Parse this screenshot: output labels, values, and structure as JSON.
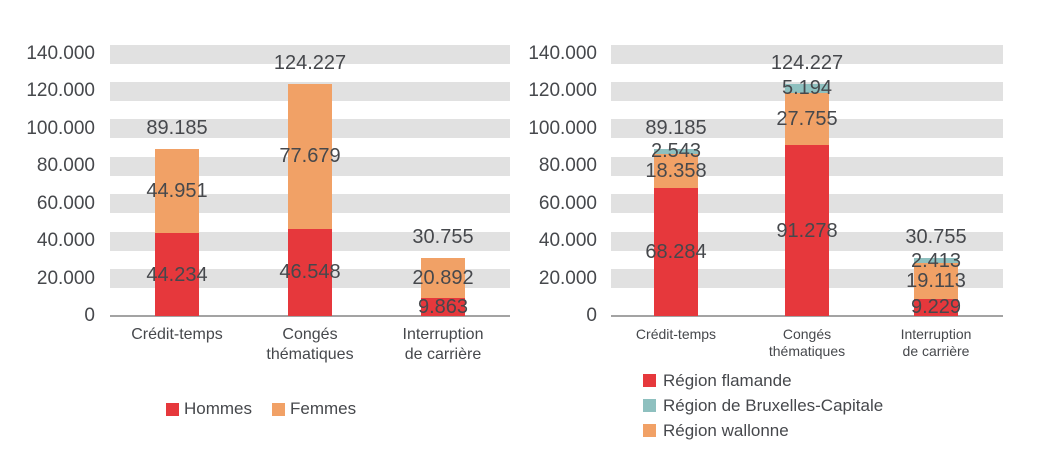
{
  "colors": {
    "red": "#e6383c",
    "orange": "#f1a166",
    "teal": "#8ec0bf",
    "stripe_gray": "#e1e1e1",
    "axis_gray": "#a3a3a3",
    "text": "#46484c"
  },
  "chart_data": [
    {
      "id": "gender-chart",
      "type": "bar",
      "stacked": true,
      "title": "",
      "xlabel": "",
      "ylabel": "",
      "ylim": [
        0,
        140000
      ],
      "grid": "thick-gray-bands",
      "categories": [
        "Crédit-temps",
        "Congés thématiques",
        "Interruption de carrière"
      ],
      "category_lines": [
        [
          "Crédit-temps"
        ],
        [
          "Congés",
          "thématiques"
        ],
        [
          "Interruption",
          "de carrière"
        ]
      ],
      "y_axis": {
        "min": 0,
        "max": 140000,
        "step": 20000,
        "tick_labels": [
          "0",
          "20.000",
          "40.000",
          "60.000",
          "80.000",
          "100.000",
          "120.000",
          "140.000"
        ]
      },
      "series": [
        {
          "name": "Hommes",
          "color": "#e6383c",
          "values": [
            44234,
            46548,
            9863
          ],
          "labels": [
            "44.234",
            "46.548",
            "9.863"
          ]
        },
        {
          "name": "Femmes",
          "color": "#f1a166",
          "values": [
            44951,
            77679,
            20892
          ],
          "labels": [
            "44.951",
            "77.679",
            "20.892"
          ]
        }
      ],
      "totals": {
        "values": [
          89185,
          124227,
          30755
        ],
        "labels": [
          "89.185",
          "124.227",
          "30.755"
        ]
      },
      "legend": {
        "position": "bottom-horizontal",
        "items": [
          {
            "label": "Hommes",
            "color": "#e6383c"
          },
          {
            "label": "Femmes",
            "color": "#f1a166"
          }
        ]
      }
    },
    {
      "id": "region-chart",
      "type": "bar",
      "stacked": true,
      "title": "",
      "xlabel": "",
      "ylabel": "",
      "ylim": [
        0,
        140000
      ],
      "grid": "thick-gray-bands",
      "categories": [
        "Crédit-temps",
        "Congés thématiques",
        "Interruption de carrière"
      ],
      "category_lines": [
        [
          "Crédit-temps"
        ],
        [
          "Congés",
          "thématiques"
        ],
        [
          "Interruption",
          "de carrière"
        ]
      ],
      "y_axis": {
        "min": 0,
        "max": 140000,
        "step": 20000,
        "tick_labels": [
          "0",
          "20.000",
          "40.000",
          "60.000",
          "80.000",
          "100.000",
          "120.000",
          "140.000"
        ]
      },
      "stack_order_note": "bottom to top: Région flamande, Région wallonne, Région de Bruxelles-Capitale",
      "series": [
        {
          "name": "Région flamande",
          "color": "#e6383c",
          "values": [
            68284,
            91278,
            9229
          ],
          "labels": [
            "68.284",
            "91.278",
            "9.229"
          ]
        },
        {
          "name": "Région wallonne",
          "color": "#f1a166",
          "values": [
            18358,
            27755,
            19113
          ],
          "labels": [
            "18.358",
            "27.755",
            "19.113"
          ]
        },
        {
          "name": "Région de Bruxelles-Capitale",
          "color": "#8ec0bf",
          "values": [
            2543,
            5194,
            2413
          ],
          "labels": [
            "2.543",
            "5.194",
            "2.413"
          ]
        }
      ],
      "totals": {
        "values": [
          89185,
          124227,
          30755
        ],
        "labels": [
          "89.185",
          "124.227",
          "30.755"
        ]
      },
      "legend": {
        "position": "bottom-vertical",
        "items": [
          {
            "label": "Région flamande",
            "color": "#e6383c"
          },
          {
            "label": "Région de Bruxelles-Capitale",
            "color": "#8ec0bf"
          },
          {
            "label": "Région wallonne",
            "color": "#f1a166"
          }
        ]
      }
    }
  ]
}
